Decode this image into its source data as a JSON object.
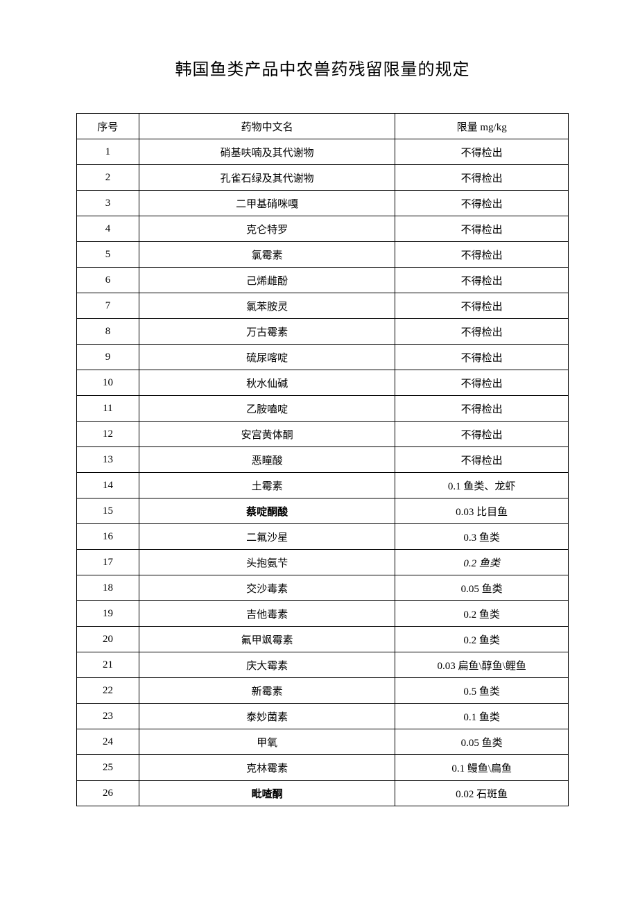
{
  "title": "韩国鱼类产品中农兽药残留限量的规定",
  "columns": {
    "num": "序号",
    "name": "药物中文名",
    "limit": "限量 mg/kg"
  },
  "rows": [
    {
      "num": "1",
      "name": "硝基呋喃及其代谢物",
      "limit": "不得检出",
      "bold": false,
      "italic": false
    },
    {
      "num": "2",
      "name": "孔雀石绿及其代谢物",
      "limit": "不得检出",
      "bold": false,
      "italic": false
    },
    {
      "num": "3",
      "name": "二甲基硝咪嘎",
      "limit": "不得检出",
      "bold": false,
      "italic": false
    },
    {
      "num": "4",
      "name": "克仑特罗",
      "limit": "不得检出",
      "bold": false,
      "italic": false
    },
    {
      "num": "5",
      "name": "氯霉素",
      "limit": "不得检出",
      "bold": false,
      "italic": false
    },
    {
      "num": "6",
      "name": "己烯雌酚",
      "limit": "不得检出",
      "bold": false,
      "italic": false
    },
    {
      "num": "7",
      "name": "氯苯胺灵",
      "limit": "不得检出",
      "bold": false,
      "italic": false
    },
    {
      "num": "8",
      "name": "万古霉素",
      "limit": "不得检出",
      "bold": false,
      "italic": false
    },
    {
      "num": "9",
      "name": "硫尿喀啶",
      "limit": "不得检出",
      "bold": false,
      "italic": false
    },
    {
      "num": "10",
      "name": "秋水仙碱",
      "limit": "不得检出",
      "bold": false,
      "italic": false
    },
    {
      "num": "11",
      "name": "乙胺嗑啶",
      "limit": "不得检出",
      "bold": false,
      "italic": false
    },
    {
      "num": "12",
      "name": "安宫黄体酮",
      "limit": "不得检出",
      "bold": false,
      "italic": false
    },
    {
      "num": "13",
      "name": "恶瞳酸",
      "limit": "不得检出",
      "bold": false,
      "italic": false
    },
    {
      "num": "14",
      "name": "土霉素",
      "limit": "0.1 鱼类、龙虾",
      "bold": false,
      "italic": false
    },
    {
      "num": "15",
      "name": "蔡啶酮酸",
      "limit": "0.03 比目鱼",
      "bold": true,
      "italic": false
    },
    {
      "num": "16",
      "name": "二氟沙星",
      "limit": "0.3 鱼类",
      "bold": false,
      "italic": false
    },
    {
      "num": "17",
      "name": "头抱氨芐",
      "limit": "0.2 鱼类",
      "bold": false,
      "italic": true
    },
    {
      "num": "18",
      "name": "交沙毒素",
      "limit": "0.05 鱼类",
      "bold": false,
      "italic": false
    },
    {
      "num": "19",
      "name": "吉他毒素",
      "limit": "0.2 鱼类",
      "bold": false,
      "italic": false
    },
    {
      "num": "20",
      "name": "氟甲飒霉素",
      "limit": "0.2 鱼类",
      "bold": false,
      "italic": false
    },
    {
      "num": "21",
      "name": "庆大霉素",
      "limit": "0.03 扁鱼\\醇鱼\\鲤鱼",
      "bold": false,
      "italic": false
    },
    {
      "num": "22",
      "name": "新霉素",
      "limit": "0.5 鱼类",
      "bold": false,
      "italic": false
    },
    {
      "num": "23",
      "name": "泰妙菌素",
      "limit": "0.1 鱼类",
      "bold": false,
      "italic": false
    },
    {
      "num": "24",
      "name": "甲氧",
      "limit": "0.05 鱼类",
      "bold": false,
      "italic": false
    },
    {
      "num": "25",
      "name": "克林霉素",
      "limit": "0.1 鳗鱼\\扁鱼",
      "bold": false,
      "italic": false
    },
    {
      "num": "26",
      "name": "毗喳酮",
      "limit": "0.02 石斑鱼",
      "bold": true,
      "italic": false
    }
  ]
}
